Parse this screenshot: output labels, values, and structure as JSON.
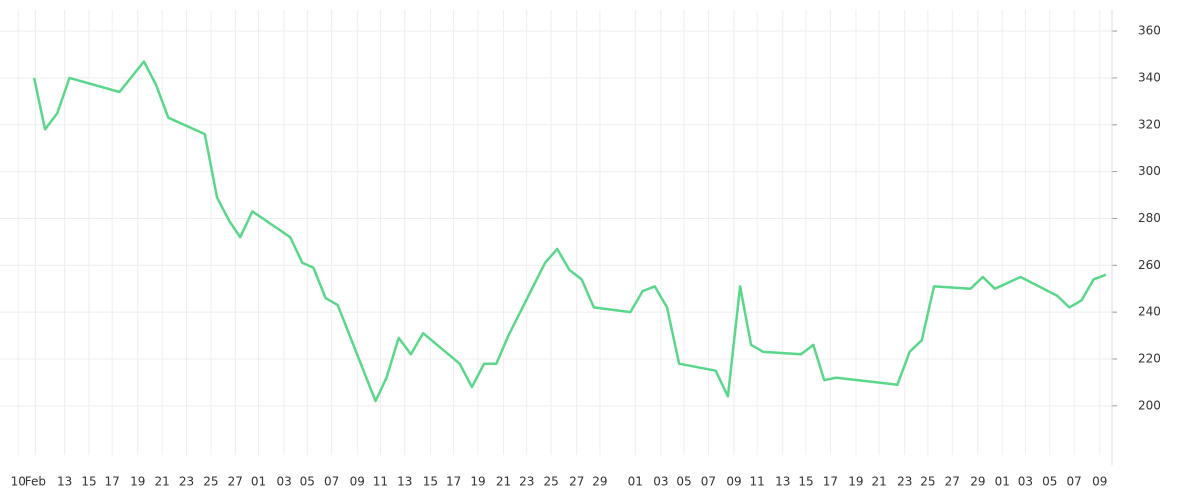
{
  "chart_data": {
    "type": "line",
    "x": [
      1.3,
      2.2,
      3.2,
      4.2,
      8.3,
      10.3,
      11.3,
      12.3,
      15.3,
      16.3,
      17.3,
      18.2,
      19.2,
      22.3,
      23.3,
      24.2,
      25.2,
      26.2,
      29.3,
      30.2,
      31.2,
      32.2,
      33.2,
      36.2,
      37.2,
      38.2,
      39.2,
      40.2,
      43.2,
      44.2,
      45.2,
      46.2,
      47.2,
      50.2,
      51.2,
      52.2,
      53.2,
      54.2,
      57.2,
      58.2,
      59.2,
      60.1,
      61.1,
      64.2,
      65.2,
      66.1,
      67.1,
      72.1,
      73.1,
      74.1,
      75.1,
      78.1,
      79.1,
      80.1,
      82.2,
      85.2,
      86.2,
      87.2,
      88.2,
      89.2
    ],
    "series": [
      {
        "color": "#5ad78a",
        "values": [
          340,
          318,
          325,
          340,
          334,
          347,
          337,
          323,
          316,
          289,
          279,
          272,
          283,
          272,
          261,
          259,
          246,
          243,
          202,
          212,
          229,
          222,
          231,
          218,
          208,
          218,
          218,
          230,
          261,
          267,
          258,
          254,
          242,
          240,
          249,
          251,
          242,
          218,
          215,
          204,
          251,
          226,
          223,
          222,
          226,
          211,
          212,
          209,
          223,
          228,
          251,
          250,
          255,
          250,
          255,
          247,
          242,
          245,
          254,
          256
        ]
      }
    ],
    "xlim": [
      -1.5,
      89.7
    ],
    "xticks": [
      {
        "value": 0,
        "label": "10"
      },
      {
        "value": 1.4,
        "label": "Feb"
      },
      {
        "value": 3.8,
        "label": "13"
      },
      {
        "value": 5.8,
        "label": "15"
      },
      {
        "value": 7.7,
        "label": "17"
      },
      {
        "value": 9.8,
        "label": "19"
      },
      {
        "value": 11.8,
        "label": "21"
      },
      {
        "value": 13.8,
        "label": "23"
      },
      {
        "value": 15.8,
        "label": "25"
      },
      {
        "value": 17.8,
        "label": "27"
      },
      {
        "value": 19.7,
        "label": "01"
      },
      {
        "value": 21.8,
        "label": "03"
      },
      {
        "value": 23.7,
        "label": "05"
      },
      {
        "value": 25.7,
        "label": "07"
      },
      {
        "value": 27.8,
        "label": "09"
      },
      {
        "value": 29.7,
        "label": "11"
      },
      {
        "value": 31.7,
        "label": "13"
      },
      {
        "value": 33.8,
        "label": "15"
      },
      {
        "value": 35.7,
        "label": "17"
      },
      {
        "value": 37.7,
        "label": "19"
      },
      {
        "value": 39.8,
        "label": "21"
      },
      {
        "value": 41.7,
        "label": "23"
      },
      {
        "value": 43.7,
        "label": "25"
      },
      {
        "value": 45.8,
        "label": "27"
      },
      {
        "value": 47.7,
        "label": "29"
      },
      {
        "value": 50.6,
        "label": "01"
      },
      {
        "value": 52.7,
        "label": "03"
      },
      {
        "value": 54.6,
        "label": "05"
      },
      {
        "value": 56.6,
        "label": "07"
      },
      {
        "value": 58.7,
        "label": "09"
      },
      {
        "value": 60.6,
        "label": "11"
      },
      {
        "value": 62.7,
        "label": "13"
      },
      {
        "value": 64.6,
        "label": "15"
      },
      {
        "value": 66.6,
        "label": "17"
      },
      {
        "value": 68.7,
        "label": "19"
      },
      {
        "value": 70.6,
        "label": "21"
      },
      {
        "value": 72.7,
        "label": "23"
      },
      {
        "value": 74.6,
        "label": "25"
      },
      {
        "value": 76.6,
        "label": "27"
      },
      {
        "value": 78.7,
        "label": "29"
      },
      {
        "value": 80.7,
        "label": "01"
      },
      {
        "value": 82.6,
        "label": "03"
      },
      {
        "value": 84.6,
        "label": "05"
      },
      {
        "value": 86.6,
        "label": "07"
      },
      {
        "value": 88.7,
        "label": "09"
      }
    ],
    "ylim": [
      179,
      369
    ],
    "yticks": [
      200,
      220,
      240,
      260,
      280,
      300,
      320,
      340,
      360
    ],
    "grid": true
  }
}
